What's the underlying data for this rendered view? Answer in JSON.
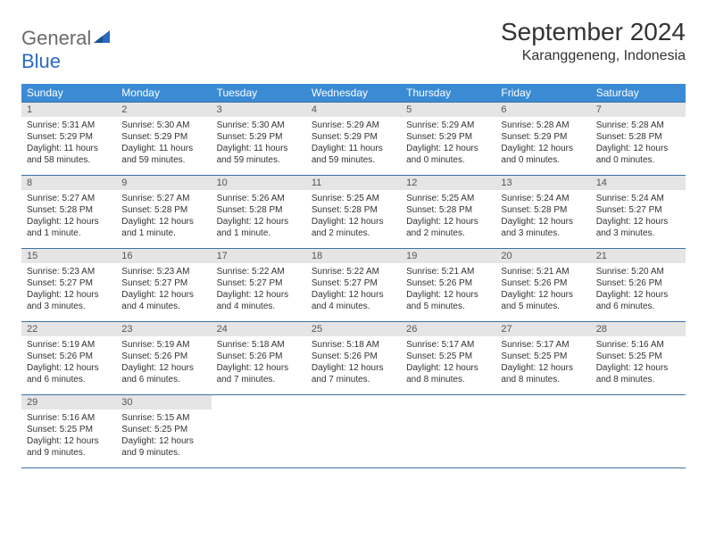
{
  "logo": {
    "part1": "General",
    "part2": "Blue"
  },
  "title": "September 2024",
  "location": "Karanggeneng, Indonesia",
  "colors": {
    "header_bg": "#3b8bd4",
    "header_text": "#ffffff",
    "daynum_bg": "#e5e5e5",
    "week_border": "#3b72a8",
    "logo_gray": "#6b6b6b",
    "logo_blue": "#2a6bbf"
  },
  "daynames": [
    "Sunday",
    "Monday",
    "Tuesday",
    "Wednesday",
    "Thursday",
    "Friday",
    "Saturday"
  ],
  "weeks": [
    [
      {
        "n": "1",
        "sr": "Sunrise: 5:31 AM",
        "ss": "Sunset: 5:29 PM",
        "d1": "Daylight: 11 hours",
        "d2": "and 58 minutes."
      },
      {
        "n": "2",
        "sr": "Sunrise: 5:30 AM",
        "ss": "Sunset: 5:29 PM",
        "d1": "Daylight: 11 hours",
        "d2": "and 59 minutes."
      },
      {
        "n": "3",
        "sr": "Sunrise: 5:30 AM",
        "ss": "Sunset: 5:29 PM",
        "d1": "Daylight: 11 hours",
        "d2": "and 59 minutes."
      },
      {
        "n": "4",
        "sr": "Sunrise: 5:29 AM",
        "ss": "Sunset: 5:29 PM",
        "d1": "Daylight: 11 hours",
        "d2": "and 59 minutes."
      },
      {
        "n": "5",
        "sr": "Sunrise: 5:29 AM",
        "ss": "Sunset: 5:29 PM",
        "d1": "Daylight: 12 hours",
        "d2": "and 0 minutes."
      },
      {
        "n": "6",
        "sr": "Sunrise: 5:28 AM",
        "ss": "Sunset: 5:29 PM",
        "d1": "Daylight: 12 hours",
        "d2": "and 0 minutes."
      },
      {
        "n": "7",
        "sr": "Sunrise: 5:28 AM",
        "ss": "Sunset: 5:28 PM",
        "d1": "Daylight: 12 hours",
        "d2": "and 0 minutes."
      }
    ],
    [
      {
        "n": "8",
        "sr": "Sunrise: 5:27 AM",
        "ss": "Sunset: 5:28 PM",
        "d1": "Daylight: 12 hours",
        "d2": "and 1 minute."
      },
      {
        "n": "9",
        "sr": "Sunrise: 5:27 AM",
        "ss": "Sunset: 5:28 PM",
        "d1": "Daylight: 12 hours",
        "d2": "and 1 minute."
      },
      {
        "n": "10",
        "sr": "Sunrise: 5:26 AM",
        "ss": "Sunset: 5:28 PM",
        "d1": "Daylight: 12 hours",
        "d2": "and 1 minute."
      },
      {
        "n": "11",
        "sr": "Sunrise: 5:25 AM",
        "ss": "Sunset: 5:28 PM",
        "d1": "Daylight: 12 hours",
        "d2": "and 2 minutes."
      },
      {
        "n": "12",
        "sr": "Sunrise: 5:25 AM",
        "ss": "Sunset: 5:28 PM",
        "d1": "Daylight: 12 hours",
        "d2": "and 2 minutes."
      },
      {
        "n": "13",
        "sr": "Sunrise: 5:24 AM",
        "ss": "Sunset: 5:28 PM",
        "d1": "Daylight: 12 hours",
        "d2": "and 3 minutes."
      },
      {
        "n": "14",
        "sr": "Sunrise: 5:24 AM",
        "ss": "Sunset: 5:27 PM",
        "d1": "Daylight: 12 hours",
        "d2": "and 3 minutes."
      }
    ],
    [
      {
        "n": "15",
        "sr": "Sunrise: 5:23 AM",
        "ss": "Sunset: 5:27 PM",
        "d1": "Daylight: 12 hours",
        "d2": "and 3 minutes."
      },
      {
        "n": "16",
        "sr": "Sunrise: 5:23 AM",
        "ss": "Sunset: 5:27 PM",
        "d1": "Daylight: 12 hours",
        "d2": "and 4 minutes."
      },
      {
        "n": "17",
        "sr": "Sunrise: 5:22 AM",
        "ss": "Sunset: 5:27 PM",
        "d1": "Daylight: 12 hours",
        "d2": "and 4 minutes."
      },
      {
        "n": "18",
        "sr": "Sunrise: 5:22 AM",
        "ss": "Sunset: 5:27 PM",
        "d1": "Daylight: 12 hours",
        "d2": "and 4 minutes."
      },
      {
        "n": "19",
        "sr": "Sunrise: 5:21 AM",
        "ss": "Sunset: 5:26 PM",
        "d1": "Daylight: 12 hours",
        "d2": "and 5 minutes."
      },
      {
        "n": "20",
        "sr": "Sunrise: 5:21 AM",
        "ss": "Sunset: 5:26 PM",
        "d1": "Daylight: 12 hours",
        "d2": "and 5 minutes."
      },
      {
        "n": "21",
        "sr": "Sunrise: 5:20 AM",
        "ss": "Sunset: 5:26 PM",
        "d1": "Daylight: 12 hours",
        "d2": "and 6 minutes."
      }
    ],
    [
      {
        "n": "22",
        "sr": "Sunrise: 5:19 AM",
        "ss": "Sunset: 5:26 PM",
        "d1": "Daylight: 12 hours",
        "d2": "and 6 minutes."
      },
      {
        "n": "23",
        "sr": "Sunrise: 5:19 AM",
        "ss": "Sunset: 5:26 PM",
        "d1": "Daylight: 12 hours",
        "d2": "and 6 minutes."
      },
      {
        "n": "24",
        "sr": "Sunrise: 5:18 AM",
        "ss": "Sunset: 5:26 PM",
        "d1": "Daylight: 12 hours",
        "d2": "and 7 minutes."
      },
      {
        "n": "25",
        "sr": "Sunrise: 5:18 AM",
        "ss": "Sunset: 5:26 PM",
        "d1": "Daylight: 12 hours",
        "d2": "and 7 minutes."
      },
      {
        "n": "26",
        "sr": "Sunrise: 5:17 AM",
        "ss": "Sunset: 5:25 PM",
        "d1": "Daylight: 12 hours",
        "d2": "and 8 minutes."
      },
      {
        "n": "27",
        "sr": "Sunrise: 5:17 AM",
        "ss": "Sunset: 5:25 PM",
        "d1": "Daylight: 12 hours",
        "d2": "and 8 minutes."
      },
      {
        "n": "28",
        "sr": "Sunrise: 5:16 AM",
        "ss": "Sunset: 5:25 PM",
        "d1": "Daylight: 12 hours",
        "d2": "and 8 minutes."
      }
    ],
    [
      {
        "n": "29",
        "sr": "Sunrise: 5:16 AM",
        "ss": "Sunset: 5:25 PM",
        "d1": "Daylight: 12 hours",
        "d2": "and 9 minutes."
      },
      {
        "n": "30",
        "sr": "Sunrise: 5:15 AM",
        "ss": "Sunset: 5:25 PM",
        "d1": "Daylight: 12 hours",
        "d2": "and 9 minutes."
      },
      {
        "empty": true
      },
      {
        "empty": true
      },
      {
        "empty": true
      },
      {
        "empty": true
      },
      {
        "empty": true
      }
    ]
  ]
}
